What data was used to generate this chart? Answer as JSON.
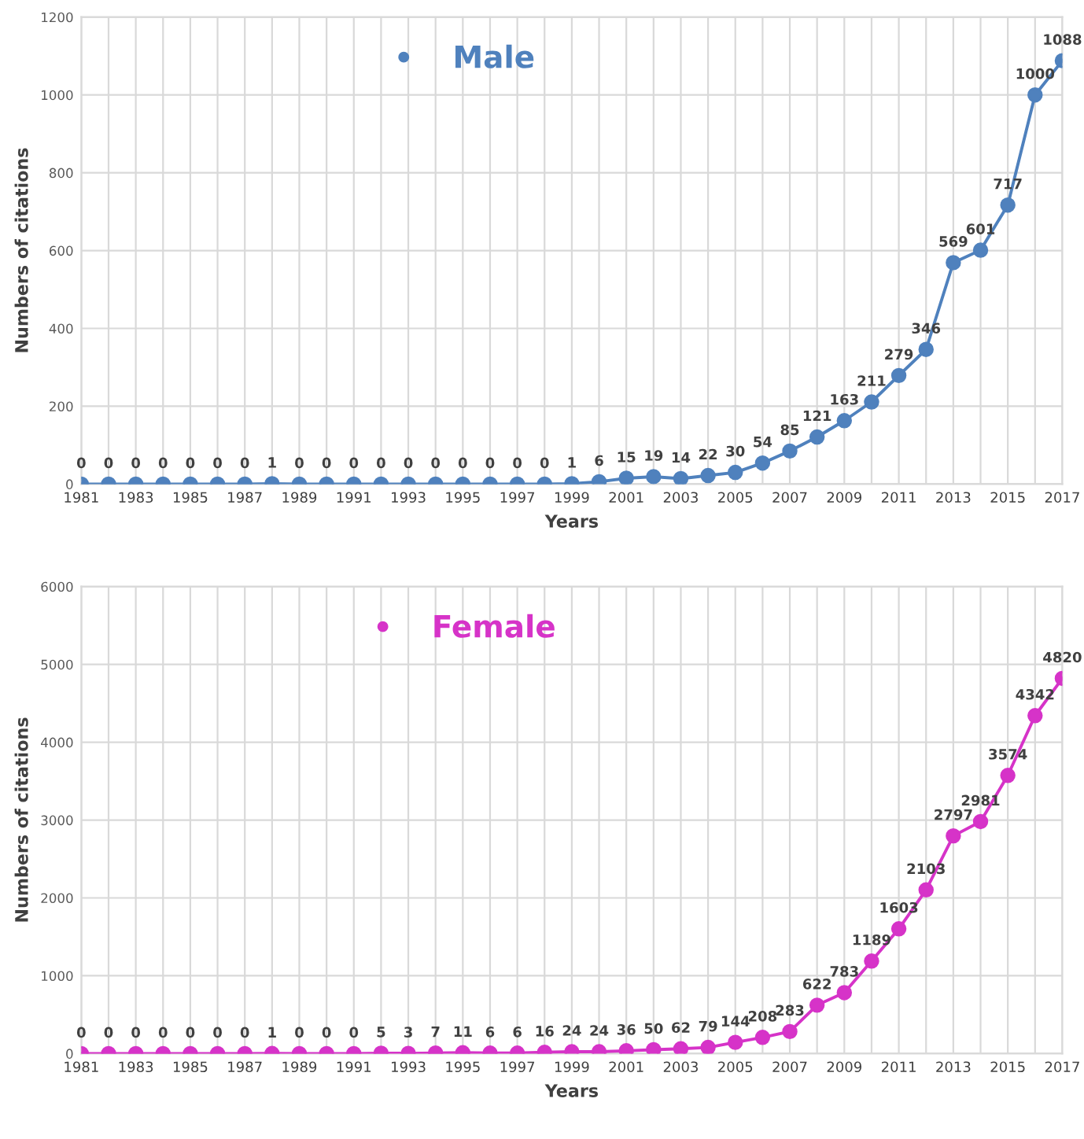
{
  "chart_data": [
    {
      "type": "line",
      "xlabel": "Years",
      "ylabel": "Numbers of citations",
      "categories": [
        "1981",
        null,
        "1983",
        null,
        "1985",
        null,
        "1987",
        null,
        "1989",
        null,
        "1991",
        null,
        "1993",
        null,
        "1995",
        null,
        "1997",
        null,
        "1999",
        null,
        "2001",
        null,
        "2003",
        null,
        "2005",
        null,
        "2007",
        null,
        "2009",
        null,
        "2011",
        null,
        "2013",
        null,
        "2015",
        null,
        "2017"
      ],
      "series": [
        {
          "name": "Male",
          "color": "#4f81bd",
          "values": [
            0,
            0,
            0,
            0,
            0,
            0,
            0,
            1,
            0,
            0,
            0,
            0,
            0,
            0,
            0,
            0,
            0,
            0,
            1,
            6,
            15,
            19,
            14,
            22,
            30,
            54,
            85,
            121,
            163,
            211,
            279,
            346,
            569,
            601,
            717,
            1000,
            1088
          ]
        }
      ],
      "ylim": [
        0,
        1200
      ],
      "yticks": [
        0,
        200,
        400,
        600,
        800,
        1000,
        1200
      ],
      "grid": true,
      "legend": "top",
      "marker": "circle",
      "line_style": "solid",
      "data_labels": true
    },
    {
      "type": "line",
      "xlabel": "Years",
      "ylabel": "Numbers of citations",
      "categories": [
        "1981",
        null,
        "1983",
        null,
        "1985",
        null,
        "1987",
        null,
        "1989",
        null,
        "1991",
        null,
        "1993",
        null,
        "1995",
        null,
        "1997",
        null,
        "1999",
        null,
        "2001",
        null,
        "2003",
        null,
        "2005",
        null,
        "2007",
        null,
        "2009",
        null,
        "2011",
        null,
        "2013",
        null,
        "2015",
        null,
        "2017"
      ],
      "series": [
        {
          "name": "Female",
          "color": "#d633c8",
          "values": [
            0,
            0,
            0,
            0,
            0,
            0,
            0,
            1,
            0,
            0,
            0,
            5,
            3,
            7,
            11,
            6,
            6,
            16,
            24,
            24,
            36,
            50,
            62,
            79,
            144,
            208,
            283,
            622,
            783,
            1189,
            1603,
            2103,
            2797,
            2981,
            3574,
            4342,
            4820
          ]
        }
      ],
      "ylim": [
        0,
        6000
      ],
      "yticks": [
        0,
        1000,
        2000,
        3000,
        4000,
        5000,
        6000
      ],
      "grid": true,
      "legend": "top",
      "marker": "circle",
      "line_style": "solid",
      "data_labels": true
    }
  ]
}
